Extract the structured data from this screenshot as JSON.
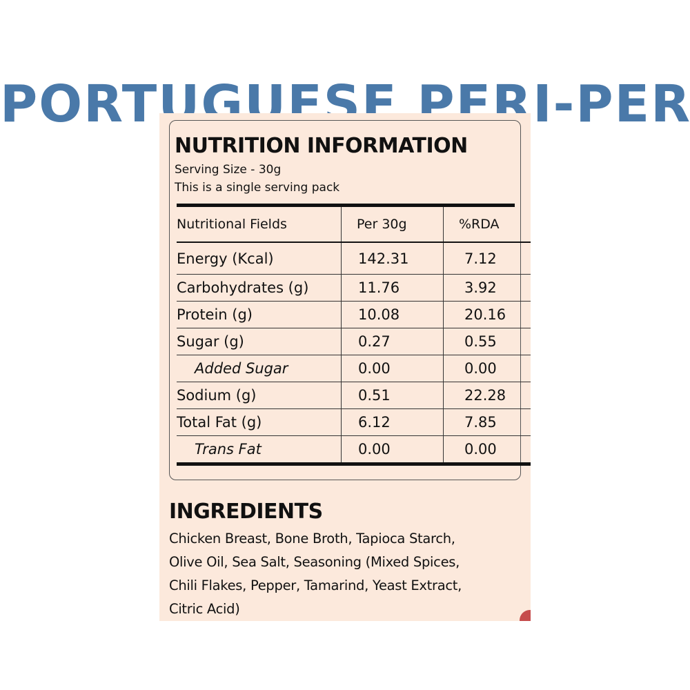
{
  "product_title": "PORTUGUESE PERI-PERI",
  "nutrition": {
    "heading": "NUTRITION INFORMATION",
    "serving_size": "Serving Size - 30g",
    "serving_note": "This is a single serving pack",
    "columns": [
      "Nutritional Fields",
      "Per 30g",
      "%RDA"
    ],
    "rows": [
      {
        "field": "Energy (Kcal)",
        "per": "142.31",
        "rda": "7.12"
      },
      {
        "field": "Carbohydrates (g)",
        "per": "11.76",
        "rda": "3.92"
      },
      {
        "field": "Protein (g)",
        "per": "10.08",
        "rda": "20.16"
      },
      {
        "field": "Sugar (g)",
        "per": "0.27",
        "rda": "0.55"
      },
      {
        "field": "Added Sugar",
        "per": "0.00",
        "rda": "0.00"
      },
      {
        "field": "Sodium (g)",
        "per": "0.51",
        "rda": "22.28"
      },
      {
        "field": "Total Fat (g)",
        "per": "6.12",
        "rda": "7.85"
      },
      {
        "field": "Trans Fat",
        "per": "0.00",
        "rda": "0.00"
      }
    ]
  },
  "ingredients": {
    "heading": "INGREDIENTS",
    "lines": [
      "Chicken Breast, Bone Broth, Tapioca Starch,",
      "Olive Oil, Sea Salt, Seasoning (Mixed Spices,",
      "Chili Flakes, Pepper, Tamarind, Yeast Extract,",
      "Citric Acid)"
    ]
  },
  "colors": {
    "title_blue": "#4a79a9",
    "panel_bg": "#fce9dc",
    "accent_red": "#c64c4c"
  }
}
